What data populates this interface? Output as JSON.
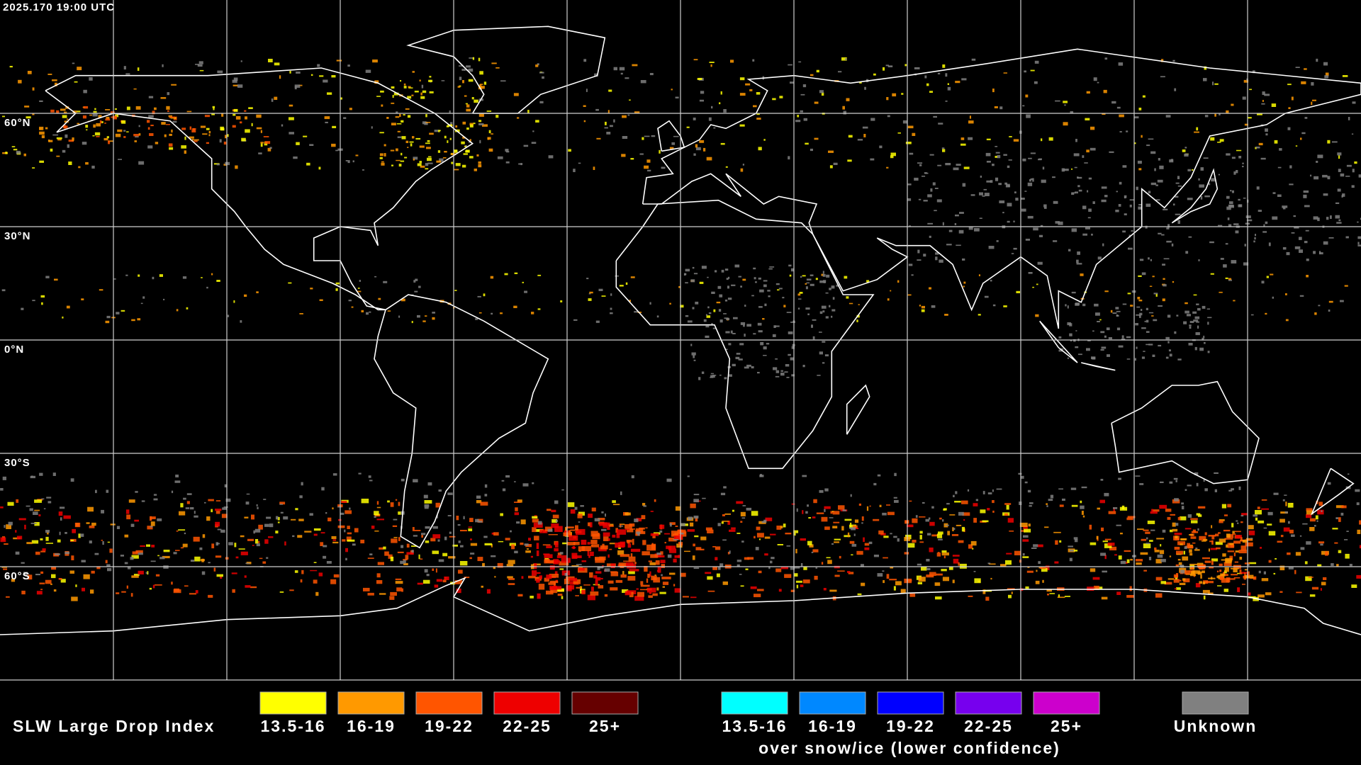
{
  "header": {
    "timestamp": "2025.170 19:00 UTC"
  },
  "map": {
    "lat_labels": [
      "60°N",
      "30°N",
      "0°N",
      "30°S",
      "60°S"
    ]
  },
  "legend": {
    "title": "SLW Large Drop Index",
    "items": [
      {
        "label": "13.5-16",
        "color": "#ffff00"
      },
      {
        "label": "16-19",
        "color": "#ff9900"
      },
      {
        "label": "19-22",
        "color": "#ff5500"
      },
      {
        "label": "22-25",
        "color": "#ee0000"
      },
      {
        "label": "25+",
        "color": "#660000"
      }
    ],
    "snow_items": [
      {
        "label": "13.5-16",
        "color": "#00ffff"
      },
      {
        "label": "16-19",
        "color": "#0088ff"
      },
      {
        "label": "19-22",
        "color": "#0000ff"
      },
      {
        "label": "22-25",
        "color": "#7700ee"
      },
      {
        "label": "25+",
        "color": "#cc00cc"
      }
    ],
    "snow_caption": "over snow/ice (lower confidence)",
    "unknown": {
      "label": "Unknown",
      "color": "#808080"
    }
  }
}
